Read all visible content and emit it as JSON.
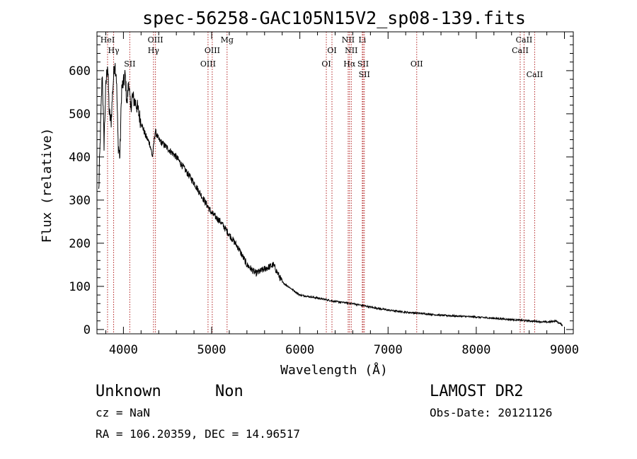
{
  "chart_data": {
    "type": "line",
    "title": "spec-56258-GAC105N15V2_sp08-139.fits",
    "xlabel": "Wavelength (Å)",
    "ylabel": "Flux (relative)",
    "xlim": [
      3700,
      9100
    ],
    "ylim": [
      -10,
      690
    ],
    "x_ticks": [
      4000,
      5000,
      6000,
      7000,
      8000,
      9000
    ],
    "x_tick_labels": [
      "4000",
      "5000",
      "6000",
      "7000",
      "8000",
      "9000"
    ],
    "y_ticks": [
      0,
      100,
      200,
      300,
      400,
      500,
      600
    ],
    "y_tick_labels": [
      "0",
      "100",
      "200",
      "300",
      "400",
      "500",
      "600"
    ],
    "grid": false,
    "series": [
      {
        "x": [
          3720,
          3740,
          3760,
          3780,
          3800,
          3820,
          3840,
          3860,
          3880,
          3900,
          3920,
          3940,
          3960,
          3980,
          4000,
          4020,
          4040,
          4060,
          4080,
          4100,
          4150,
          4200,
          4250,
          4300,
          4330,
          4360,
          4400,
          4450,
          4500,
          4600,
          4700,
          4800,
          4900,
          5000,
          5100,
          5200,
          5300,
          5400,
          5500,
          5600,
          5700,
          5800,
          5900,
          6000,
          6200,
          6400,
          6600,
          6800,
          7000,
          7200,
          7400,
          7600,
          7800,
          8000,
          8200,
          8400,
          8600,
          8800,
          8900,
          8980
        ],
        "y": [
          320,
          460,
          600,
          430,
          560,
          620,
          500,
          480,
          560,
          620,
          590,
          430,
          400,
          560,
          570,
          590,
          520,
          580,
          510,
          540,
          520,
          480,
          450,
          430,
          400,
          460,
          440,
          430,
          420,
          400,
          370,
          340,
          305,
          270,
          250,
          220,
          190,
          150,
          130,
          140,
          150,
          110,
          95,
          80,
          73,
          65,
          60,
          52,
          45,
          40,
          37,
          33,
          31,
          29,
          26,
          23,
          20,
          17,
          20,
          10
        ]
      }
    ],
    "emission_lines": [
      {
        "name": "Hγ",
        "wavelength": 3889,
        "row": 1
      },
      {
        "name": "HeI",
        "wavelength": 3820,
        "row": 0
      },
      {
        "name": "SII",
        "wavelength": 4072,
        "row": 2
      },
      {
        "name": "OIII",
        "wavelength": 4363,
        "row": 0
      },
      {
        "name": "Hγ",
        "wavelength": 4341,
        "row": 1
      },
      {
        "name": "OIII",
        "wavelength": 4959,
        "row": 2
      },
      {
        "name": "OIII",
        "wavelength": 5007,
        "row": 1
      },
      {
        "name": "Mg",
        "wavelength": 5175,
        "row": 0
      },
      {
        "name": "OI",
        "wavelength": 6300,
        "row": 2
      },
      {
        "name": "OI",
        "wavelength": 6364,
        "row": 1
      },
      {
        "name": "NII",
        "wavelength": 6548,
        "row": 0
      },
      {
        "name": "Hα",
        "wavelength": 6563,
        "row": 2
      },
      {
        "name": "NII",
        "wavelength": 6583,
        "row": 1
      },
      {
        "name": "Li",
        "wavelength": 6708,
        "row": 0
      },
      {
        "name": "SII",
        "wavelength": 6717,
        "row": 2
      },
      {
        "name": "SII",
        "wavelength": 6731,
        "row": 3
      },
      {
        "name": "OII",
        "wavelength": 7325,
        "row": 2
      },
      {
        "name": "CaII",
        "wavelength": 8498,
        "row": 1
      },
      {
        "name": "CaII",
        "wavelength": 8542,
        "row": 0
      },
      {
        "name": "CaII",
        "wavelength": 8662,
        "row": 3
      }
    ]
  },
  "info": {
    "object_class": "Unknown",
    "subclass": "Non",
    "survey": "LAMOST DR2",
    "redshift": "cz = NaN",
    "obs_date": "Obs-Date: 20121126",
    "coordinates": "RA = 106.20359, DEC =  14.96517"
  },
  "colors": {
    "spectrum": "#000000",
    "emission_line": "#b22222",
    "axes": "#000000"
  }
}
